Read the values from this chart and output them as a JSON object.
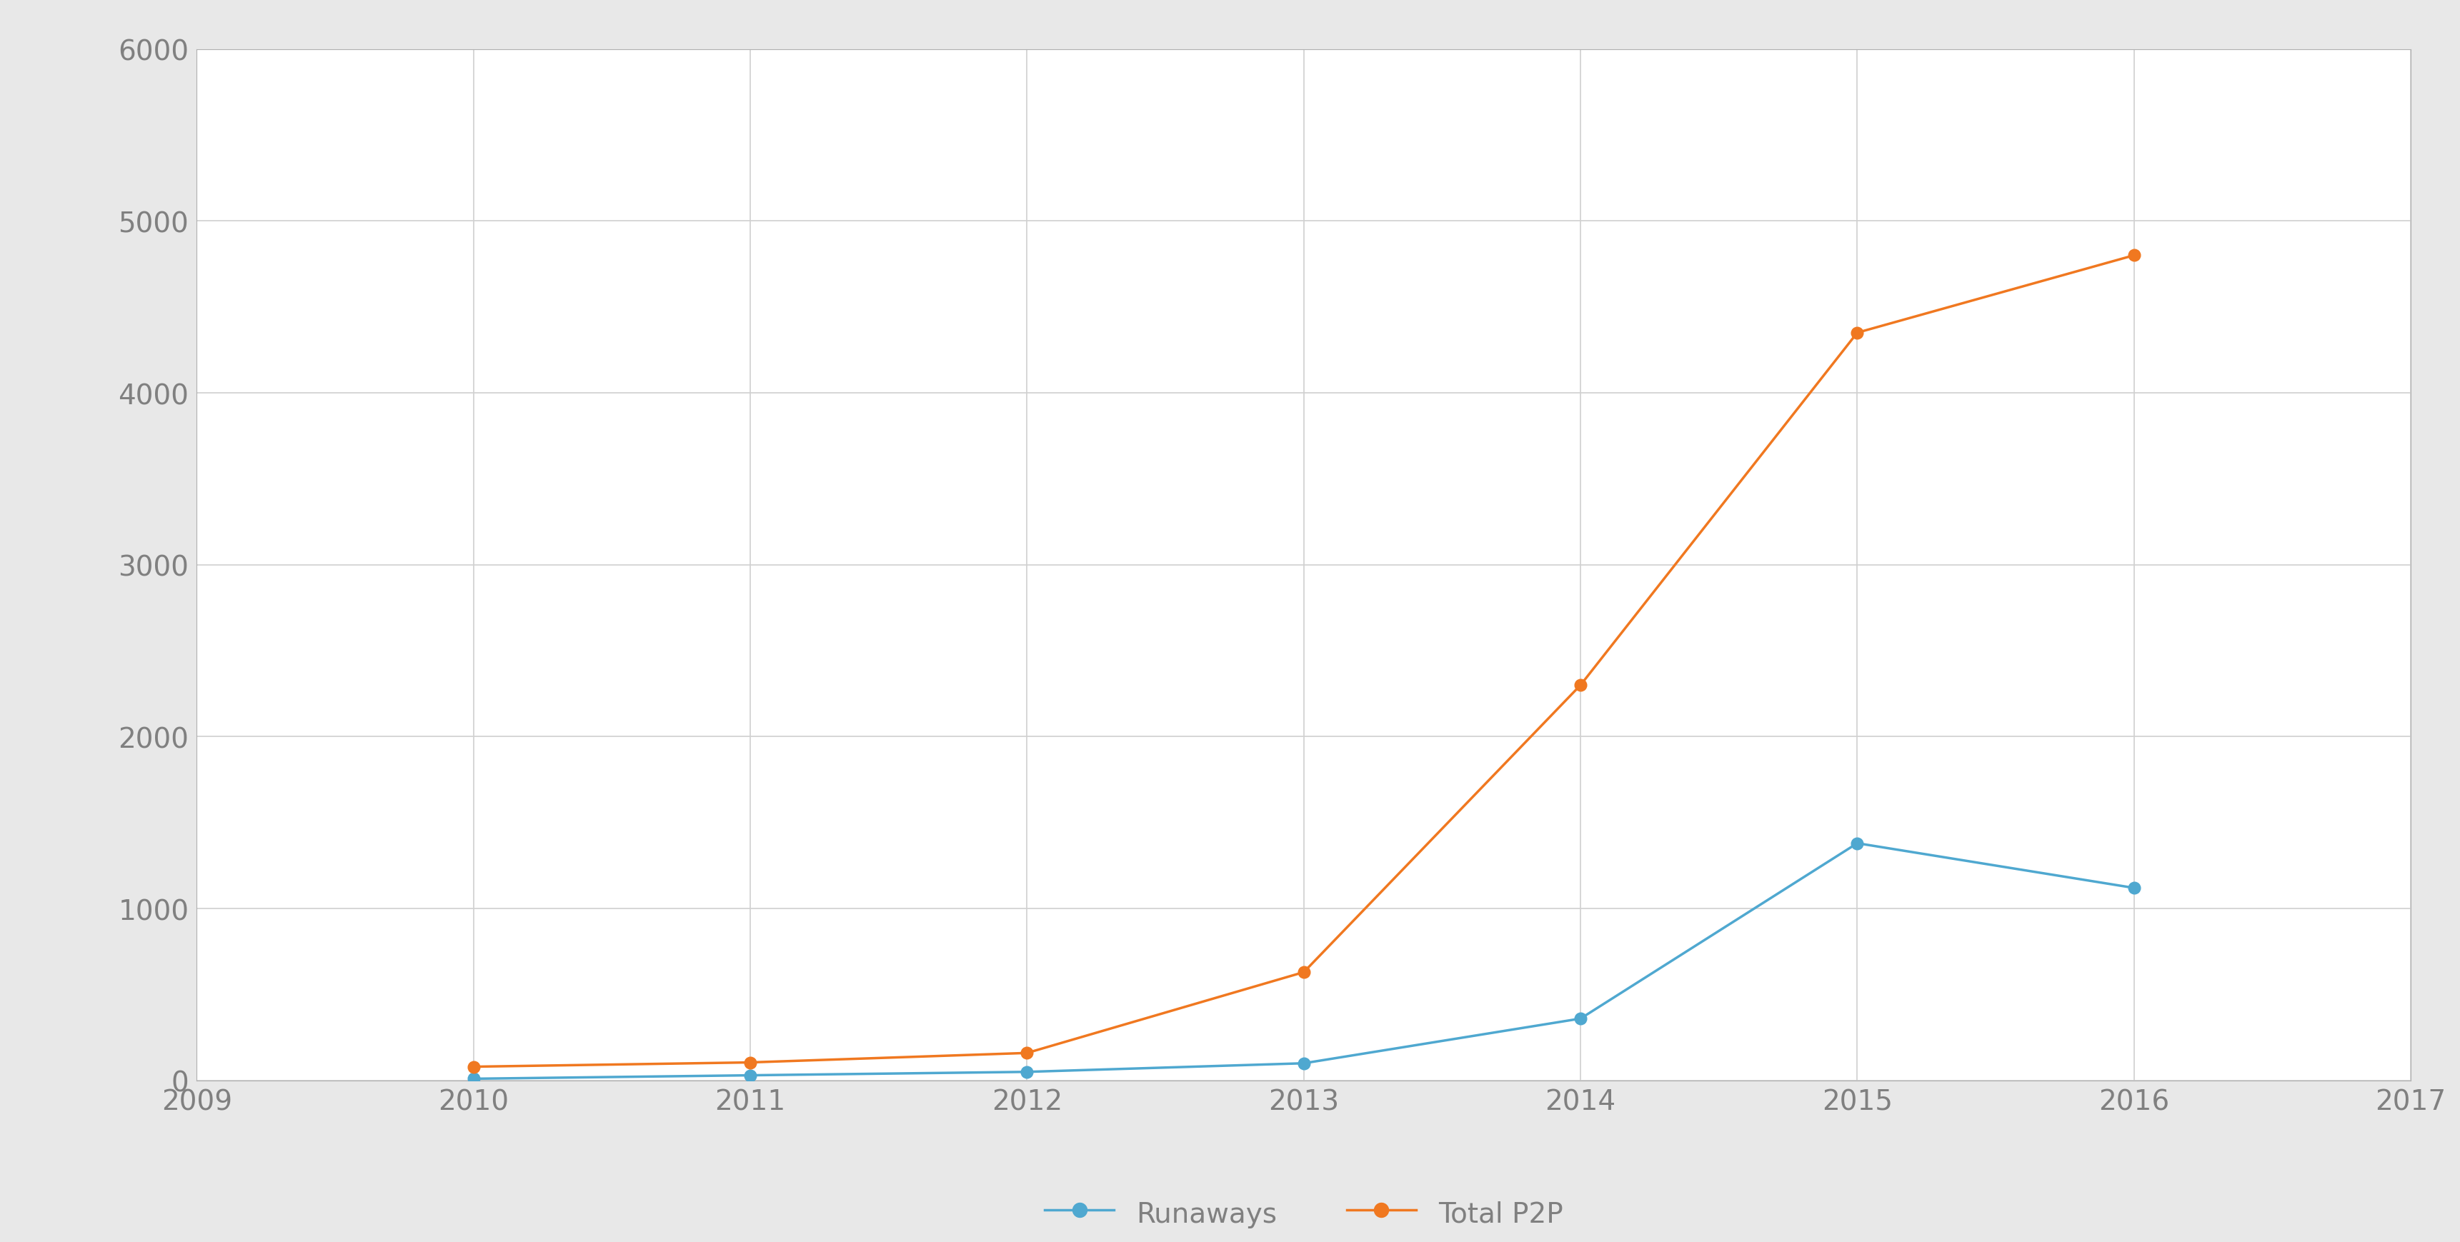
{
  "years": [
    2010,
    2011,
    2012,
    2013,
    2014,
    2015,
    2016
  ],
  "runaways": [
    10,
    30,
    50,
    100,
    360,
    1380,
    1120
  ],
  "total_p2p": [
    80,
    105,
    160,
    630,
    2300,
    4350,
    4800
  ],
  "runaways_color": "#4fa8d0",
  "total_p2p_color": "#f07820",
  "runaways_label": "Runaways",
  "total_p2p_label": "Total P2P",
  "xlim": [
    2009,
    2017
  ],
  "ylim": [
    0,
    6000
  ],
  "yticks": [
    0,
    1000,
    2000,
    3000,
    4000,
    5000,
    6000
  ],
  "xticks": [
    2009,
    2010,
    2011,
    2012,
    2013,
    2014,
    2015,
    2016,
    2017
  ],
  "background_color": "#ffffff",
  "outer_bg_color": "#e8e8e8",
  "grid_color": "#d0d0d0",
  "tick_label_color": "#808080",
  "marker": "o",
  "marker_size": 12,
  "line_width": 2.5,
  "legend_fontsize": 28,
  "tick_fontsize": 28,
  "legend_marker_size": 14
}
